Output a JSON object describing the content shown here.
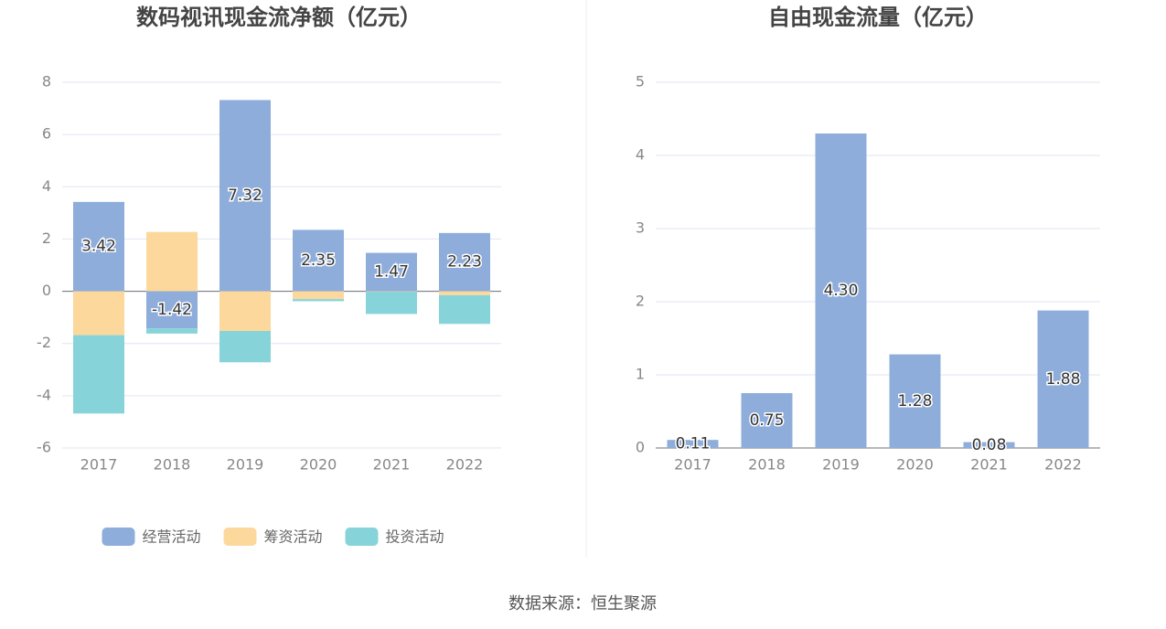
{
  "chart_data": [
    {
      "type": "bar",
      "stacked": true,
      "title": "数码视讯现金流净额（亿元）",
      "categories": [
        "2017",
        "2018",
        "2019",
        "2020",
        "2021",
        "2022"
      ],
      "series": [
        {
          "name": "经营活动",
          "color": "#8eaddb",
          "values": [
            3.42,
            -1.42,
            7.32,
            2.35,
            1.47,
            2.23
          ]
        },
        {
          "name": "筹资活动",
          "color": "#fdd89c",
          "values": [
            -1.68,
            2.27,
            -1.52,
            -0.3,
            -0.02,
            -0.15
          ]
        },
        {
          "name": "投资活动",
          "color": "#86d4d9",
          "values": [
            -3.0,
            -0.2,
            -1.2,
            -0.08,
            -0.85,
            -1.1
          ]
        }
      ],
      "ylim": [
        -6,
        8
      ],
      "yticks": [
        -6,
        -4,
        -2,
        0,
        2,
        4,
        6,
        8
      ],
      "grid": true,
      "legend": "bottom"
    },
    {
      "type": "bar",
      "title": "自由现金流量（亿元）",
      "categories": [
        "2017",
        "2018",
        "2019",
        "2020",
        "2021",
        "2022"
      ],
      "series": [
        {
          "name": "自由现金流量",
          "color": "#8eaddb",
          "values": [
            0.11,
            0.75,
            4.3,
            1.28,
            0.08,
            1.88
          ],
          "value_labels": [
            "0.11",
            "0.75",
            "4.30",
            "1.28",
            "0.08",
            "1.88"
          ]
        }
      ],
      "ylim": [
        0,
        5
      ],
      "yticks": [
        0,
        1,
        2,
        3,
        4,
        5
      ],
      "grid": true
    }
  ],
  "source": "数据来源：恒生聚源"
}
